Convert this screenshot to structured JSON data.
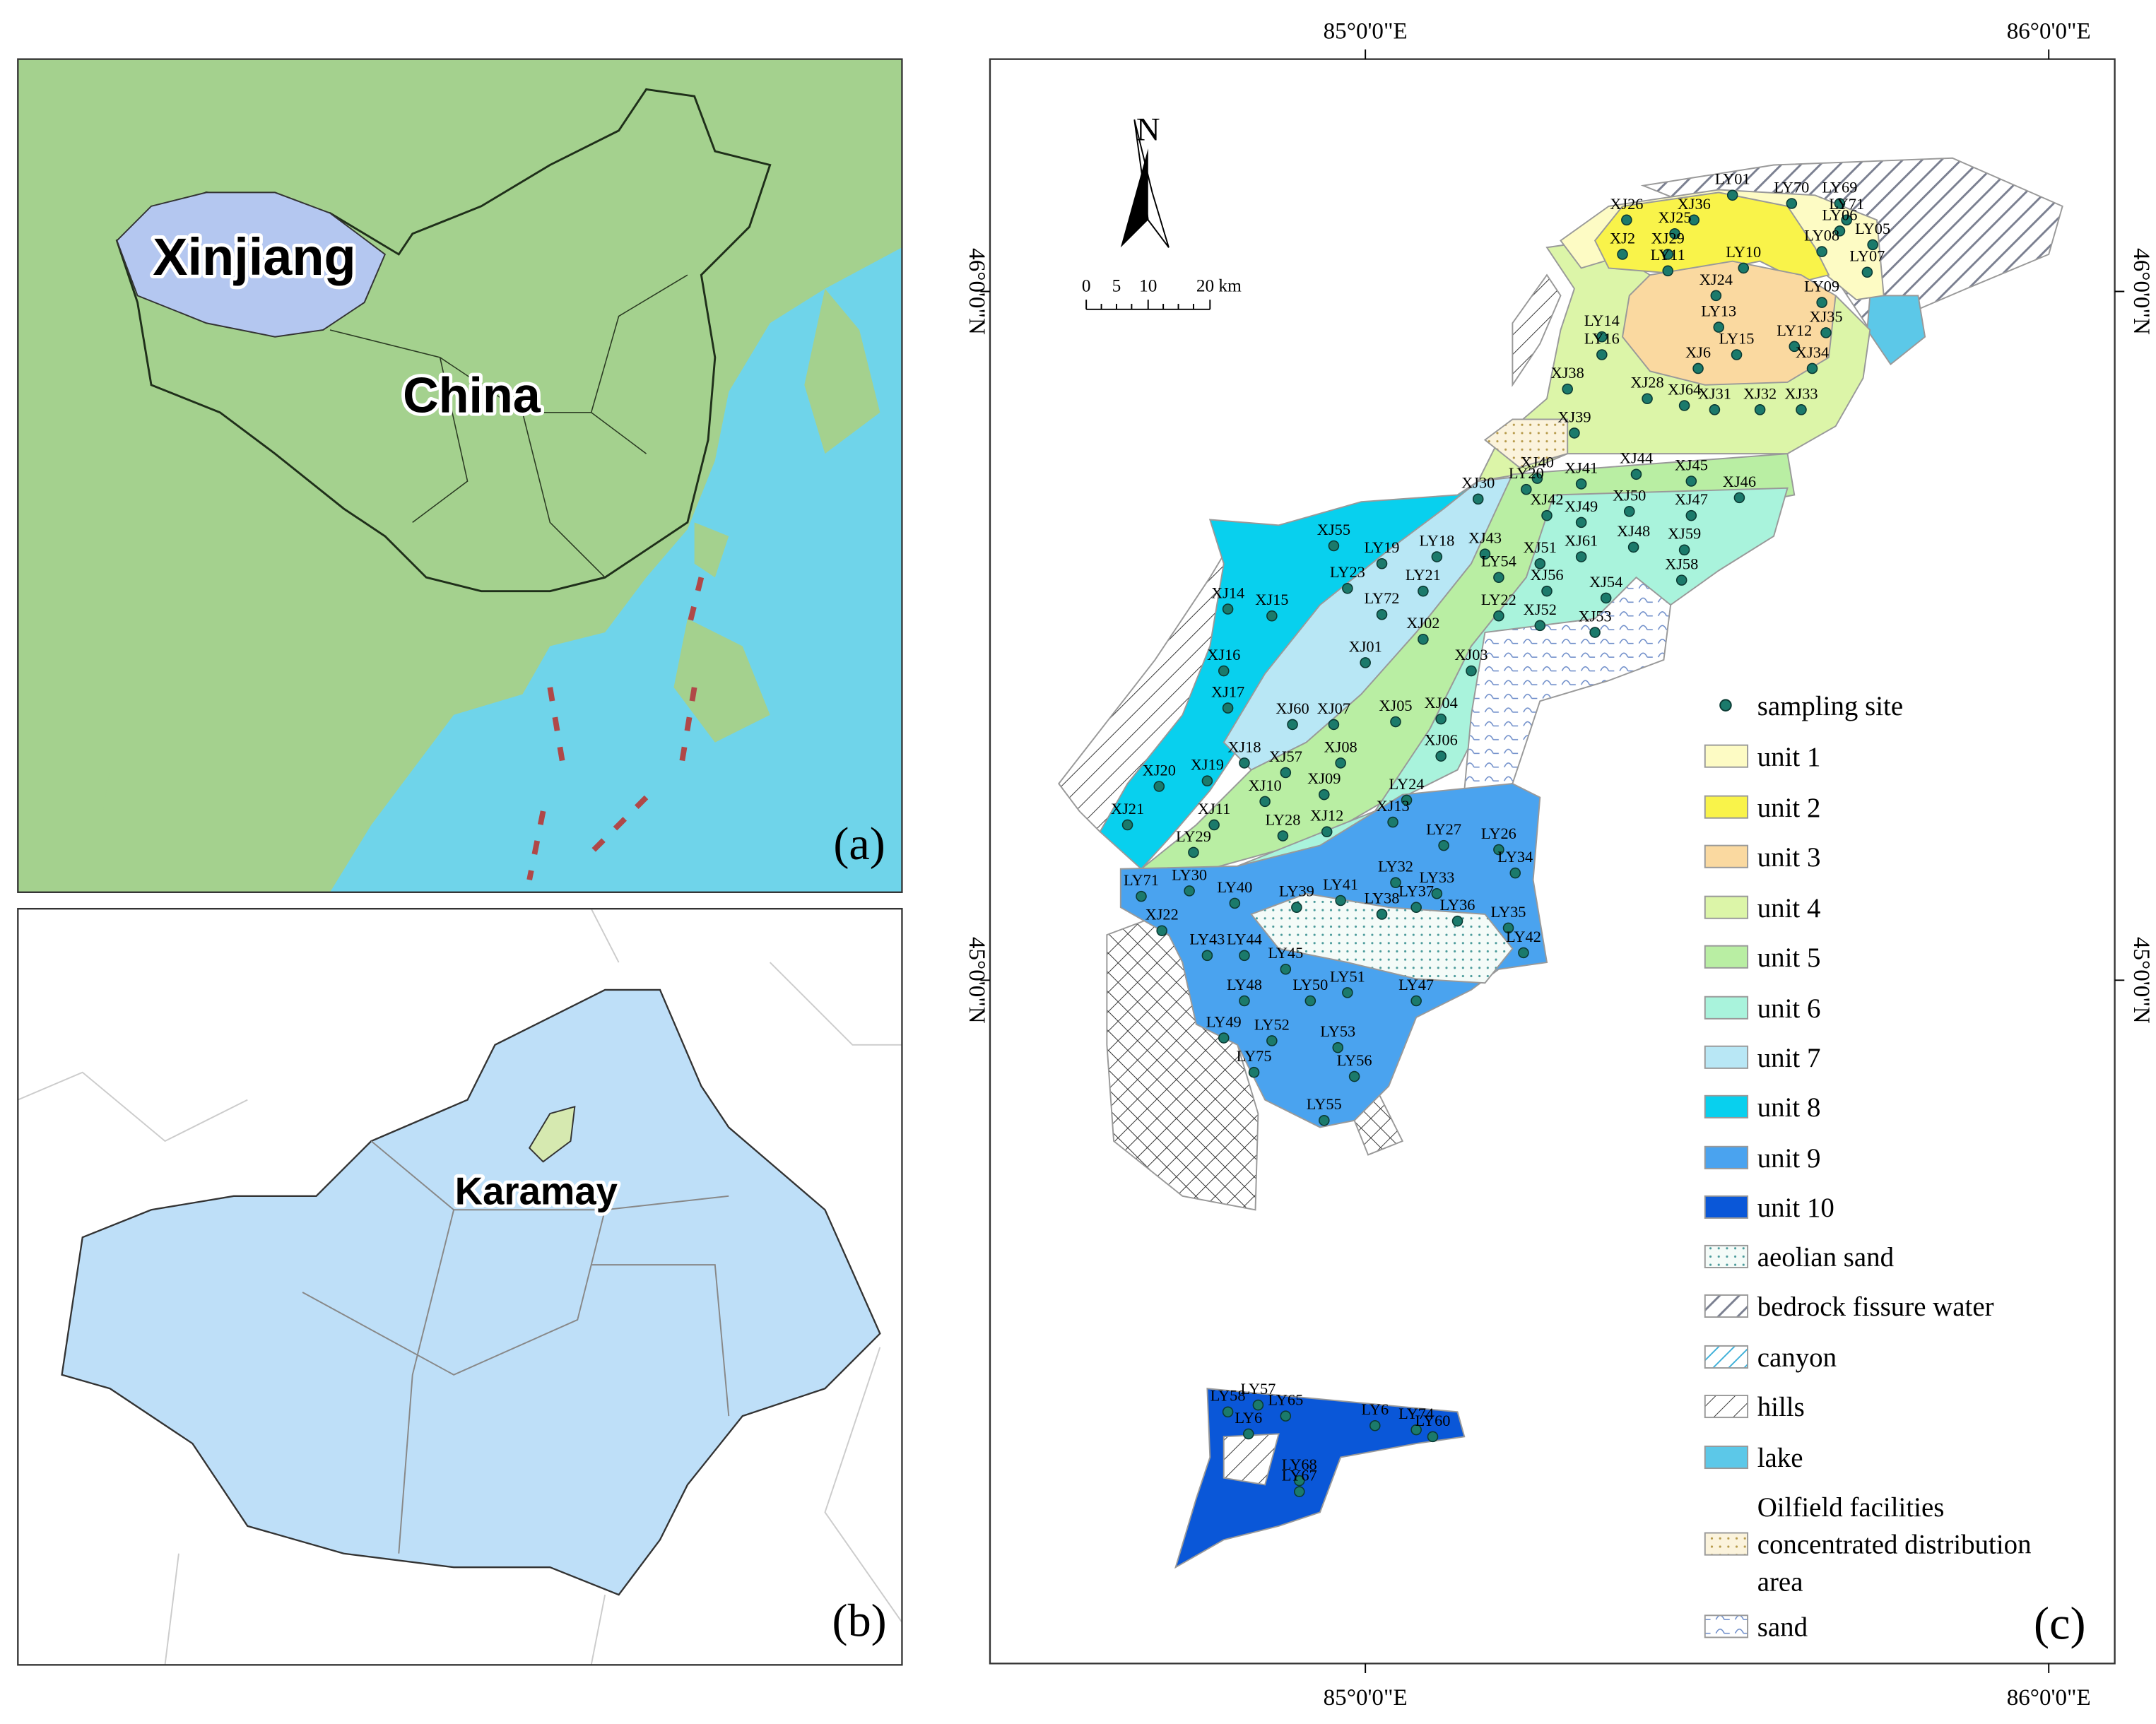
{
  "panel_a": {
    "labels": [
      "Xinjiang",
      "China"
    ],
    "tag": "(a)"
  },
  "panel_b": {
    "label": "Karamay",
    "tag": "(b)"
  },
  "panel_c": {
    "tag": "(c)",
    "north": "N",
    "scale": [
      "0",
      "5",
      "10",
      "20 km"
    ],
    "lon_top": [
      "85°0'0\"E",
      "86°0'0\"E"
    ],
    "lon_bottom": [
      "85°0'0\"E",
      "86°0'0\"E"
    ],
    "lat_left": [
      "46°0'0\"N",
      "45°0'0\"N"
    ],
    "lat_right": [
      "46°0'0\"N",
      "45°0'0\"N"
    ],
    "legend": [
      {
        "label": "sampling site",
        "color": "#1b7a6b"
      },
      {
        "label": "unit 1",
        "color": "#fdfbc4"
      },
      {
        "label": "unit 2",
        "color": "#f9f34a"
      },
      {
        "label": "unit 3",
        "color": "#fad9a0"
      },
      {
        "label": "unit 4",
        "color": "#dcf5a8"
      },
      {
        "label": "unit 5",
        "color": "#b9eea3"
      },
      {
        "label": "unit 6",
        "color": "#a9f3dc"
      },
      {
        "label": "unit 7",
        "color": "#b8e7f5"
      },
      {
        "label": "unit 8",
        "color": "#08d0ee"
      },
      {
        "label": "unit 9",
        "color": "#4aa3ef"
      },
      {
        "label": "unit 10",
        "color": "#0a57d8"
      },
      {
        "label": "aeolian sand"
      },
      {
        "label": "bedrock fissure water"
      },
      {
        "label": "canyon"
      },
      {
        "label": "hills"
      },
      {
        "label": "lake",
        "color": "#5cc8e8"
      },
      {
        "lines": [
          "Oilfield facilities",
          "concentrated distribution",
          "area"
        ]
      },
      {
        "label": "sand"
      }
    ],
    "sites": [
      "LY01",
      "XJ36",
      "XJ26",
      "XJ25",
      "LY69",
      "LY70",
      "LY71",
      "LY06",
      "LY05",
      "LY08",
      "LY07",
      "XJ29",
      "XJ2",
      "LY11",
      "XJ24",
      "LY10",
      "LY09",
      "LY14",
      "LY13",
      "XJ35",
      "LY16",
      "LY12",
      "LY15",
      "XJ34",
      "XJ38",
      "XJ6",
      "XJ28",
      "XJ64",
      "XJ31",
      "XJ32",
      "XJ33",
      "XJ39",
      "XJ44",
      "XJ40",
      "XJ41",
      "XJ45",
      "XJ46",
      "LY20",
      "XJ30",
      "XJ42",
      "XJ47",
      "XJ49",
      "XJ50",
      "XJ55",
      "LY18",
      "XJ43",
      "XJ51",
      "XJ61",
      "XJ48",
      "XJ59",
      "LY19",
      "LY23",
      "LY21",
      "LY54",
      "XJ56",
      "XJ58",
      "XJ54",
      "LY72",
      "LY22",
      "XJ52",
      "XJ53",
      "XJ14",
      "XJ15",
      "XJ02",
      "XJ01",
      "XJ03",
      "XJ16",
      "XJ17",
      "XJ60",
      "XJ07",
      "XJ05",
      "XJ04",
      "XJ06",
      "XJ18",
      "XJ57",
      "XJ08",
      "XJ19",
      "XJ20",
      "XJ10",
      "XJ09",
      "LY24",
      "XJ13",
      "XJ11",
      "XJ21",
      "LY28",
      "XJ12",
      "LY29",
      "LY27",
      "LY26",
      "LY34",
      "LY71",
      "LY30",
      "LY32",
      "LY33",
      "LY40",
      "LY39",
      "LY41",
      "LY37",
      "LY38",
      "LY36",
      "XJ22",
      "LY35",
      "LY42",
      "LY43",
      "LY44",
      "LY45",
      "LY48",
      "LY50",
      "LY51",
      "LY47",
      "LY49",
      "LY52",
      "LY53",
      "LY75",
      "LY56",
      "LY55",
      "LY58",
      "LY57",
      "LY65",
      "LY6",
      "LY6",
      "LY74",
      "LY60",
      "LY68",
      "LY67"
    ]
  }
}
